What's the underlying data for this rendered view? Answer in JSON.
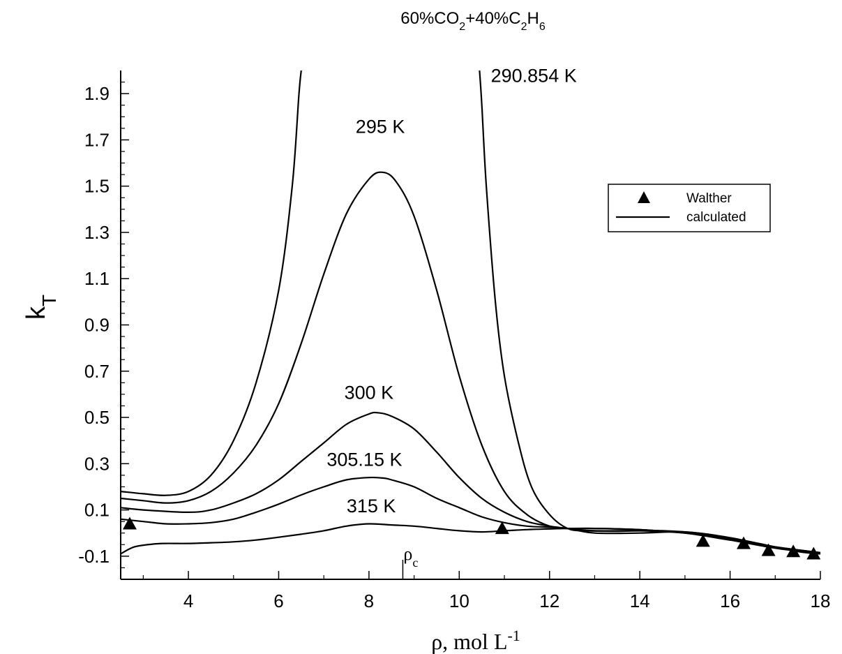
{
  "chart_data": {
    "type": "line",
    "title": {
      "prefix": "60%CO",
      "sub1": "2",
      "mid": "+40%C",
      "sub2": "2",
      "mid2": "H",
      "sub3": "6"
    },
    "ylabel": {
      "main": "k",
      "sub": "T"
    },
    "xlabel": {
      "main": "ρ, mol L",
      "sup": "-1"
    },
    "xlim": [
      2.5,
      18
    ],
    "ylim": [
      -0.2,
      2.0
    ],
    "x_ticks": [
      4,
      6,
      8,
      10,
      12,
      14,
      16,
      18
    ],
    "x_tick_labels": [
      "4",
      "6",
      "8",
      "10",
      "12",
      "14",
      "16",
      "18"
    ],
    "y_ticks": [
      -0.1,
      0.1,
      0.3,
      0.5,
      0.7,
      0.9,
      1.1,
      1.3,
      1.5,
      1.7,
      1.9
    ],
    "y_tick_labels": [
      "-0.1",
      "0.1",
      "0.3",
      "0.5",
      "0.7",
      "0.9",
      "1.1",
      "1.3",
      "1.5",
      "1.7",
      "1.9"
    ],
    "grid": false,
    "legend_position": "right",
    "legend": [
      {
        "label": "Walther",
        "marker": "triangle"
      },
      {
        "label": "calculated",
        "marker": "line"
      }
    ],
    "critical_marker": {
      "x": 8.75,
      "label_main": "ρ",
      "label_sub": "c"
    },
    "series": [
      {
        "name": "290.854 K",
        "segments": [
          [
            [
              2.5,
              0.18
            ],
            [
              3.0,
              0.17
            ],
            [
              3.5,
              0.163
            ],
            [
              4.0,
              0.18
            ],
            [
              4.5,
              0.25
            ],
            [
              5.0,
              0.4
            ],
            [
              5.5,
              0.65
            ],
            [
              6.0,
              1.05
            ],
            [
              6.3,
              1.5
            ],
            [
              6.45,
              1.9
            ],
            [
              6.5,
              2.0
            ]
          ],
          [
            [
              10.45,
              2.0
            ],
            [
              10.5,
              1.85
            ],
            [
              10.6,
              1.5
            ],
            [
              10.8,
              1.0
            ],
            [
              11.0,
              0.68
            ],
            [
              11.3,
              0.4
            ],
            [
              11.6,
              0.2
            ],
            [
              12.0,
              0.08
            ],
            [
              12.4,
              0.02
            ],
            [
              12.8,
              0.01
            ],
            [
              13.5,
              0.008
            ],
            [
              14.5,
              0.01
            ],
            [
              15.5,
              -0.005
            ],
            [
              16.5,
              -0.04
            ],
            [
              17.5,
              -0.08
            ],
            [
              18.0,
              -0.09
            ]
          ]
        ]
      },
      {
        "name": "295 K",
        "points": [
          [
            2.5,
            0.15
          ],
          [
            3.0,
            0.14
          ],
          [
            3.5,
            0.13
          ],
          [
            4.0,
            0.14
          ],
          [
            4.5,
            0.18
          ],
          [
            5.0,
            0.26
          ],
          [
            5.5,
            0.38
          ],
          [
            6.0,
            0.56
          ],
          [
            6.5,
            0.82
          ],
          [
            7.0,
            1.12
          ],
          [
            7.5,
            1.38
          ],
          [
            8.0,
            1.53
          ],
          [
            8.3,
            1.56
          ],
          [
            8.6,
            1.52
          ],
          [
            9.0,
            1.37
          ],
          [
            9.5,
            1.05
          ],
          [
            10.0,
            0.68
          ],
          [
            10.5,
            0.38
          ],
          [
            11.0,
            0.18
          ],
          [
            11.5,
            0.08
          ],
          [
            12.0,
            0.03
          ],
          [
            12.4,
            0.02
          ],
          [
            13.0,
            0.0
          ],
          [
            14.0,
            0.0
          ],
          [
            15.0,
            0.005
          ],
          [
            16.0,
            -0.02
          ],
          [
            17.0,
            -0.06
          ],
          [
            18.0,
            -0.09
          ]
        ]
      },
      {
        "name": "300 K",
        "points": [
          [
            2.5,
            0.11
          ],
          [
            3.0,
            0.1
          ],
          [
            4.0,
            0.09
          ],
          [
            4.5,
            0.1
          ],
          [
            5.0,
            0.13
          ],
          [
            5.5,
            0.17
          ],
          [
            6.0,
            0.23
          ],
          [
            6.5,
            0.31
          ],
          [
            7.0,
            0.39
          ],
          [
            7.5,
            0.47
          ],
          [
            8.0,
            0.515
          ],
          [
            8.2,
            0.52
          ],
          [
            8.5,
            0.505
          ],
          [
            9.0,
            0.45
          ],
          [
            9.5,
            0.35
          ],
          [
            10.0,
            0.24
          ],
          [
            10.5,
            0.15
          ],
          [
            11.0,
            0.09
          ],
          [
            11.5,
            0.05
          ],
          [
            12.0,
            0.03
          ],
          [
            12.4,
            0.02
          ],
          [
            13.0,
            0.01
          ],
          [
            14.0,
            0.01
          ],
          [
            15.0,
            0.0
          ],
          [
            16.0,
            -0.03
          ],
          [
            17.0,
            -0.06
          ],
          [
            18.0,
            -0.085
          ]
        ]
      },
      {
        "name": "305.15 K",
        "points": [
          [
            2.5,
            0.06
          ],
          [
            3.0,
            0.05
          ],
          [
            3.5,
            0.04
          ],
          [
            4.0,
            0.04
          ],
          [
            4.5,
            0.045
          ],
          [
            5.0,
            0.06
          ],
          [
            5.5,
            0.09
          ],
          [
            6.0,
            0.125
          ],
          [
            6.5,
            0.165
          ],
          [
            7.0,
            0.2
          ],
          [
            7.5,
            0.23
          ],
          [
            8.0,
            0.24
          ],
          [
            8.3,
            0.238
          ],
          [
            8.5,
            0.23
          ],
          [
            9.0,
            0.2
          ],
          [
            9.5,
            0.15
          ],
          [
            10.0,
            0.11
          ],
          [
            10.5,
            0.07
          ],
          [
            11.0,
            0.045
          ],
          [
            11.5,
            0.03
          ],
          [
            12.0,
            0.025
          ],
          [
            12.4,
            0.02
          ],
          [
            13.0,
            0.02
          ],
          [
            14.0,
            0.015
          ],
          [
            15.0,
            0.0
          ],
          [
            16.0,
            -0.025
          ],
          [
            17.0,
            -0.06
          ],
          [
            18.0,
            -0.085
          ]
        ]
      },
      {
        "name": "315 K",
        "points": [
          [
            2.5,
            -0.09
          ],
          [
            2.8,
            -0.06
          ],
          [
            3.2,
            -0.048
          ],
          [
            3.5,
            -0.045
          ],
          [
            4.0,
            -0.045
          ],
          [
            4.5,
            -0.042
          ],
          [
            5.0,
            -0.038
          ],
          [
            5.5,
            -0.03
          ],
          [
            6.0,
            -0.018
          ],
          [
            6.5,
            -0.005
          ],
          [
            7.0,
            0.01
          ],
          [
            7.5,
            0.03
          ],
          [
            8.0,
            0.04
          ],
          [
            8.5,
            0.035
          ],
          [
            9.0,
            0.03
          ],
          [
            9.5,
            0.02
          ],
          [
            10.0,
            0.01
          ],
          [
            10.5,
            0.005
          ],
          [
            11.0,
            0.01
          ],
          [
            11.5,
            0.015
          ],
          [
            12.0,
            0.018
          ],
          [
            12.4,
            0.02
          ],
          [
            13.0,
            0.02
          ],
          [
            14.0,
            0.015
          ],
          [
            15.0,
            0.0
          ],
          [
            16.0,
            -0.03
          ],
          [
            17.0,
            -0.065
          ],
          [
            18.0,
            -0.09
          ]
        ]
      }
    ],
    "series_labels": [
      {
        "text": "290.854 K",
        "x": 10.7,
        "y": 1.95
      },
      {
        "text": "295 K",
        "x": 8.25,
        "y": 1.73
      },
      {
        "text": "300 K",
        "x": 8.0,
        "y": 0.58
      },
      {
        "text": "305.15 K",
        "x": 7.9,
        "y": 0.29
      },
      {
        "text": "315 K",
        "x": 8.05,
        "y": 0.09
      }
    ],
    "walther_points": [
      {
        "x": 2.7,
        "y": 0.04
      },
      {
        "x": 10.95,
        "y": 0.02
      },
      {
        "x": 15.4,
        "y": -0.035
      },
      {
        "x": 16.3,
        "y": -0.045
      },
      {
        "x": 16.85,
        "y": -0.075
      },
      {
        "x": 17.4,
        "y": -0.08
      },
      {
        "x": 17.85,
        "y": -0.09
      }
    ]
  }
}
